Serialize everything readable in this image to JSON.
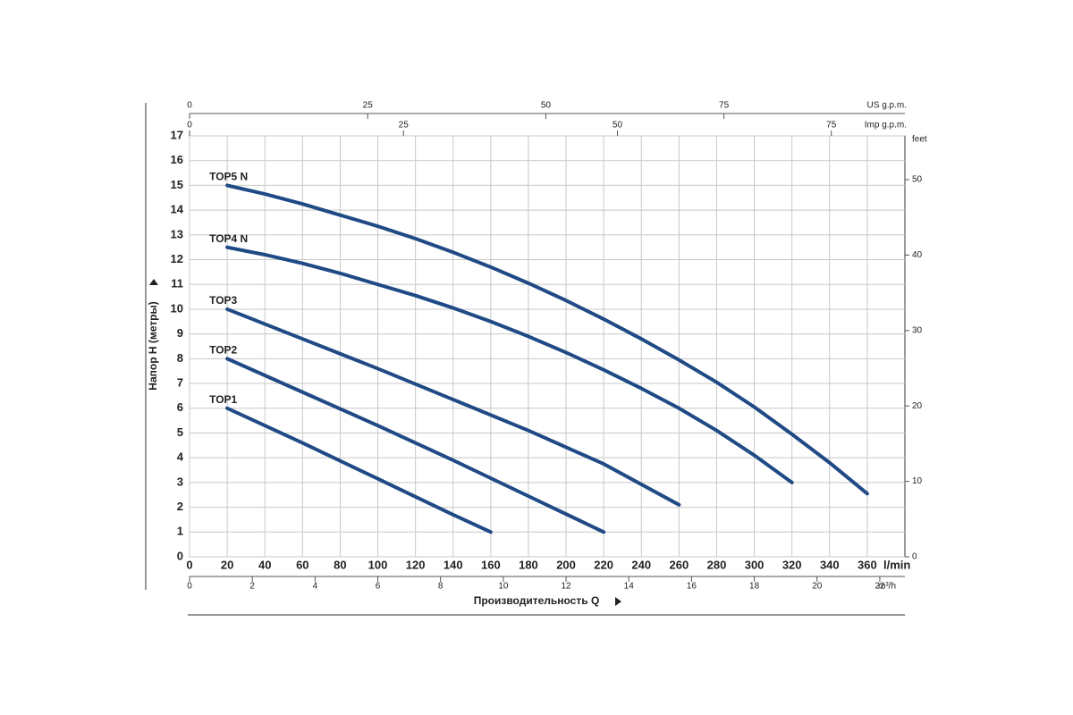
{
  "chart_data": {
    "type": "line",
    "x_label": "Производительность Q",
    "y_label": "Напор H (метры)",
    "x_unit": "l/min",
    "xlim": [
      0,
      380
    ],
    "xticks": [
      0,
      20,
      40,
      60,
      80,
      100,
      120,
      140,
      160,
      180,
      200,
      220,
      240,
      260,
      280,
      300,
      320,
      340,
      360
    ],
    "ylim": [
      0,
      17
    ],
    "yticks": [
      0,
      1,
      2,
      3,
      4,
      5,
      6,
      7,
      8,
      9,
      10,
      11,
      12,
      13,
      14,
      15,
      16,
      17
    ],
    "grid": true,
    "x2": {
      "unit": "m³/h",
      "lim": [
        0,
        22.8
      ],
      "ticks": [
        0,
        2,
        4,
        6,
        8,
        10,
        12,
        14,
        16,
        18,
        20,
        22
      ]
    },
    "x3": {
      "unit": "US g.p.m.",
      "lim": [
        0,
        100.4
      ],
      "ticks": [
        0,
        25,
        50,
        75
      ]
    },
    "x4": {
      "unit": "Imp g.p.m.",
      "lim": [
        0,
        83.6
      ],
      "ticks": [
        0,
        25,
        50,
        75
      ]
    },
    "y2": {
      "unit": "feet",
      "lim": [
        0,
        55.8
      ],
      "ticks": [
        0,
        10,
        20,
        30,
        40,
        50
      ]
    },
    "series": [
      {
        "name": "TOP5 N",
        "color": "#1f4a85",
        "x": [
          20,
          40,
          60,
          80,
          100,
          120,
          140,
          160,
          180,
          200,
          220,
          240,
          260,
          280,
          300,
          320,
          340,
          360
        ],
        "values": [
          15,
          14.65,
          14.25,
          13.8,
          13.35,
          12.85,
          12.3,
          11.7,
          11.05,
          10.35,
          9.6,
          8.8,
          7.95,
          7.05,
          6.05,
          4.95,
          3.8,
          2.55
        ]
      },
      {
        "name": "TOP4 N",
        "color": "#1f4a85",
        "x": [
          20,
          40,
          60,
          80,
          100,
          120,
          140,
          160,
          180,
          200,
          220,
          240,
          260,
          280,
          300,
          320
        ],
        "values": [
          12.5,
          12.2,
          11.85,
          11.45,
          11.0,
          10.55,
          10.05,
          9.5,
          8.9,
          8.25,
          7.55,
          6.8,
          6.0,
          5.1,
          4.1,
          3.0
        ]
      },
      {
        "name": "TOP3",
        "color": "#1f4a85",
        "x": [
          20,
          60,
          100,
          140,
          180,
          220,
          260
        ],
        "values": [
          10,
          8.8,
          7.6,
          6.35,
          5.1,
          3.75,
          2.1
        ]
      },
      {
        "name": "TOP2",
        "color": "#1f4a85",
        "x": [
          20,
          60,
          100,
          140,
          180,
          220
        ],
        "values": [
          8,
          6.65,
          5.3,
          3.9,
          2.45,
          1.0
        ]
      },
      {
        "name": "TOP1",
        "color": "#1f4a85",
        "x": [
          20,
          60,
          100,
          140,
          160
        ],
        "values": [
          6,
          4.6,
          3.15,
          1.7,
          1.0
        ]
      }
    ]
  }
}
